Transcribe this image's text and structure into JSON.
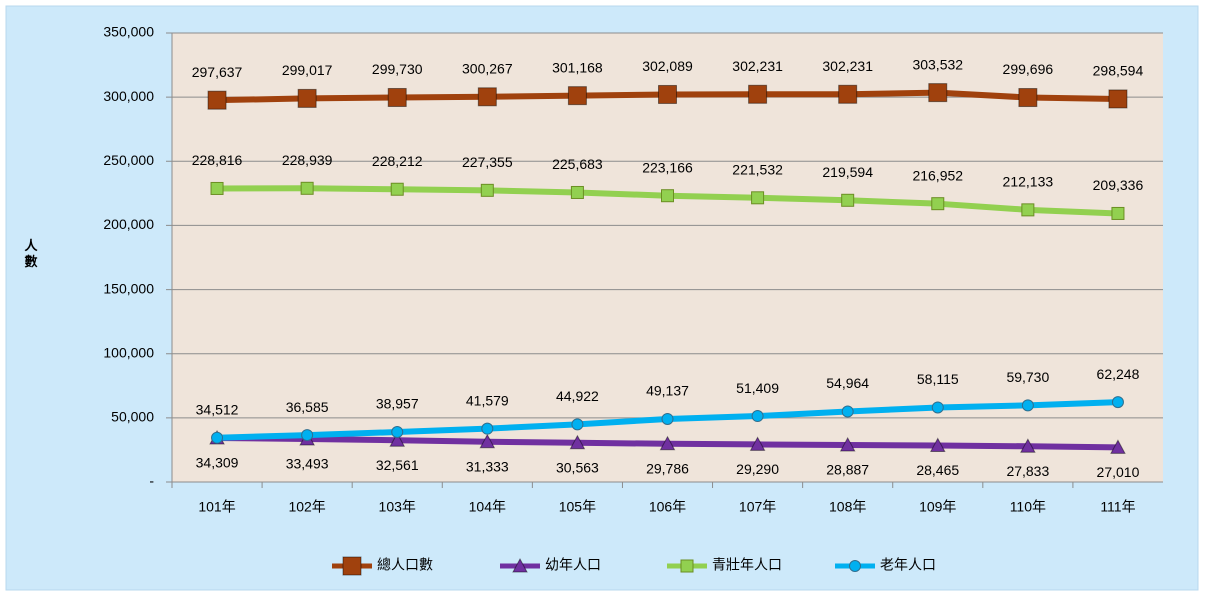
{
  "chart_data": {
    "type": "line",
    "y_label": "人數",
    "categories": [
      "101年",
      "102年",
      "103年",
      "104年",
      "105年",
      "106年",
      "107年",
      "108年",
      "109年",
      "110年",
      "111年"
    ],
    "series": [
      {
        "name": "總人口數",
        "color": "#a0410d",
        "marker": "square",
        "values": [
          297637,
          299017,
          299730,
          300267,
          301168,
          302089,
          302231,
          302231,
          303532,
          299696,
          298594
        ],
        "value_labels": [
          "297,637",
          "299,017",
          "299,730",
          "300,267",
          "301,168",
          "302,089",
          "302,231",
          "302,231",
          "303,532",
          "299,696",
          "298,594"
        ]
      },
      {
        "name": "幼年人口",
        "color": "#7030a0",
        "marker": "triangle",
        "values": [
          34309,
          33493,
          32561,
          31333,
          30563,
          29786,
          29290,
          28887,
          28465,
          27833,
          27010
        ],
        "value_labels": [
          "34,309",
          "33,493",
          "32,561",
          "31,333",
          "30,563",
          "29,786",
          "29,290",
          "28,887",
          "28,465",
          "27,833",
          "27,010"
        ]
      },
      {
        "name": "青壯年人口",
        "color": "#92d050",
        "marker": "small-square",
        "values": [
          228816,
          228939,
          228212,
          227355,
          225683,
          223166,
          221532,
          219594,
          216952,
          212133,
          209336
        ],
        "value_labels": [
          "228,816",
          "228,939",
          "228,212",
          "227,355",
          "225,683",
          "223,166",
          "221,532",
          "219,594",
          "216,952",
          "212,133",
          "209,336"
        ]
      },
      {
        "name": "老年人口",
        "color": "#00b0f0",
        "marker": "circle",
        "values": [
          34512,
          36585,
          38957,
          41579,
          44922,
          49137,
          51409,
          54964,
          58115,
          59730,
          62248
        ],
        "value_labels": [
          "34,512",
          "36,585",
          "38,957",
          "41,579",
          "44,922",
          "49,137",
          "51,409",
          "54,964",
          "58,115",
          "59,730",
          "62,248"
        ]
      }
    ],
    "ylim": [
      0,
      350000
    ],
    "yticks": [
      {
        "value": 0,
        "label": "-"
      },
      {
        "value": 50000,
        "label": "50,000"
      },
      {
        "value": 100000,
        "label": "100,000"
      },
      {
        "value": 150000,
        "label": "150,000"
      },
      {
        "value": 200000,
        "label": "200,000"
      },
      {
        "value": 250000,
        "label": "250,000"
      },
      {
        "value": 300000,
        "label": "300,000"
      },
      {
        "value": 350000,
        "label": "350,000"
      }
    ],
    "grid": true,
    "legend": "bottom"
  }
}
